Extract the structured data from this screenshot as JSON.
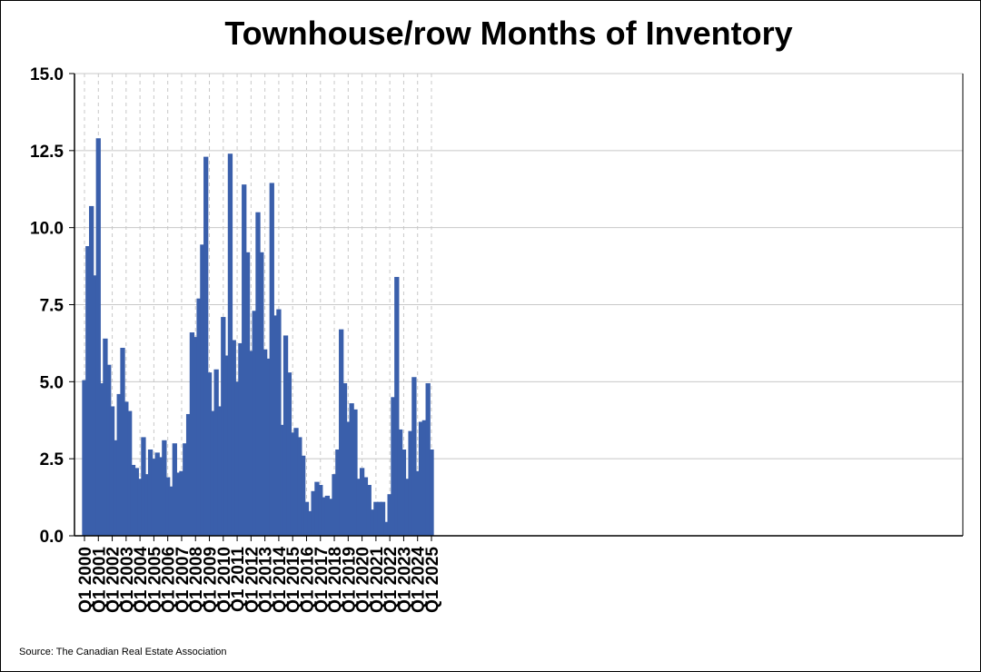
{
  "chart_data": {
    "type": "bar",
    "title": "Townhouse/row Months of Inventory",
    "source": "Source: The Canadian Real Estate Association",
    "ylim": [
      0,
      15
    ],
    "yticks": [
      "0.0",
      "2.5",
      "5.0",
      "7.5",
      "10.0",
      "12.5",
      "15.0"
    ],
    "xticks": [
      "Q1 2000",
      "Q1 2001",
      "Q1 2002",
      "Q1 2003",
      "Q1 2004",
      "Q1 2005",
      "Q1 2006",
      "Q1 2007",
      "Q1 2008",
      "Q1 2009",
      "Q1 2010",
      "Q1 2011",
      "Q1 2012",
      "Q1 2013",
      "Q1 2014",
      "Q1 2015",
      "Q1 2016",
      "Q1 2017",
      "Q1 2018",
      "Q1 2019",
      "Q1 2020",
      "Q1 2021",
      "Q1 2022",
      "Q1 2023",
      "Q1 2024",
      "Q1 2025"
    ],
    "series": [
      {
        "name": "Months of Inventory",
        "color": "#3A5FAB",
        "values": [
          5.05,
          9.4,
          10.7,
          8.45,
          12.9,
          4.95,
          6.4,
          5.55,
          4.2,
          3.1,
          4.6,
          6.1,
          4.35,
          4.05,
          2.3,
          2.2,
          1.85,
          3.2,
          2.0,
          2.8,
          2.5,
          2.7,
          2.55,
          3.1,
          1.9,
          1.6,
          3.0,
          2.05,
          2.1,
          3.0,
          3.95,
          6.6,
          6.45,
          7.7,
          9.45,
          12.3,
          5.3,
          4.05,
          5.4,
          4.2,
          7.1,
          5.85,
          12.4,
          6.35,
          5.0,
          6.25,
          11.4,
          9.2,
          6.0,
          7.3,
          10.5,
          9.2,
          6.05,
          5.75,
          11.45,
          7.15,
          7.35,
          3.6,
          6.5,
          5.3,
          3.35,
          3.5,
          3.2,
          2.6,
          1.1,
          0.8,
          1.45,
          1.75,
          1.65,
          1.25,
          1.3,
          1.2,
          2.0,
          2.8,
          6.7,
          4.95,
          3.7,
          4.3,
          4.1,
          1.85,
          2.2,
          1.9,
          1.65,
          0.85,
          1.1,
          1.1,
          1.1,
          0.45,
          1.35,
          4.5,
          8.4,
          3.45,
          2.8,
          1.85,
          3.4,
          5.15,
          2.1,
          3.7,
          3.75,
          4.95,
          2.8
        ]
      }
    ]
  }
}
